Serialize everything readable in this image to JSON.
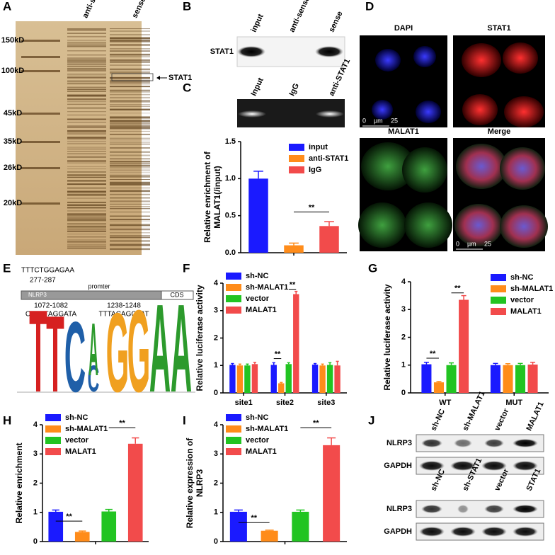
{
  "panel_labels": [
    "A",
    "B",
    "C",
    "D",
    "E",
    "F",
    "G",
    "H",
    "I",
    "J"
  ],
  "gel_a": {
    "columns": [
      "anti-sense",
      "sense"
    ],
    "markers": [
      "150kD",
      "100kD",
      "45kD",
      "35kD",
      "26kD",
      "20kD"
    ],
    "arrow_label": "STAT1"
  },
  "blot_b": {
    "columns": [
      "input",
      "anti-sense",
      "sense"
    ],
    "row": "STAT1"
  },
  "gel_c": {
    "columns": [
      "Input",
      "IgG",
      "anti-STAT1"
    ]
  },
  "images_d": {
    "titles": [
      "DAPI",
      "STAT1",
      "MALAT1",
      "Merge"
    ],
    "scale": [
      "0",
      "µm",
      "25"
    ]
  },
  "motif_e": {
    "site1": {
      "seq": "TTTCTGGAGAA",
      "range": "277-287"
    },
    "gene": "NLRP3",
    "promoter": "promter",
    "cds": "CDS",
    "site2": {
      "range": "1072-1082",
      "seq": "CTTCTAGGATA"
    },
    "site3": {
      "range": "1238-1248",
      "seq": "TTTACAGGTAT"
    },
    "logo": [
      "T",
      "T",
      "C",
      "C",
      "A",
      "G",
      "G",
      "A",
      "A"
    ]
  },
  "blots_j": [
    {
      "columns": [
        "sh-NC",
        "sh-MALAT1",
        "vector",
        "MALAT1"
      ],
      "rows": [
        "NLRP3",
        "GAPDH"
      ]
    },
    {
      "columns": [
        "sh-NC",
        "sh-STAT1",
        "vector",
        "STAT1"
      ],
      "rows": [
        "NLRP3",
        "GAPDH"
      ]
    }
  ],
  "chart_data": [
    {
      "type": "bar",
      "y_label": [
        "Relative enrichment of",
        "MALAT1(/input)"
      ],
      "legend": "upper right",
      "ylim": [
        0,
        1.5
      ],
      "yticks": [
        {
          "value": 0,
          "label": "0.0"
        },
        {
          "value": 0.5,
          "label": "0.5"
        },
        {
          "value": 1,
          "label": "1.0"
        },
        {
          "value": 1.5,
          "label": "1.5"
        }
      ],
      "series": [
        {
          "name": "input",
          "color": "#1a1aff",
          "values": [
            1.0
          ],
          "errors": [
            0.1
          ]
        },
        {
          "name": "anti-STAT1",
          "color": "#ff8c1a",
          "values": [
            0.1
          ],
          "errors": [
            0.03
          ]
        },
        {
          "name": "IgG",
          "color": "#f24b4b",
          "values": [
            0.36
          ],
          "errors": [
            0.06
          ]
        }
      ],
      "annotations": [
        "**"
      ]
    },
    {
      "type": "bar",
      "y_label": [
        "Relative luciferase activity"
      ],
      "legend": "upper left",
      "categories": [
        "site1",
        "site2",
        "site3"
      ],
      "ylim": [
        0,
        4
      ],
      "yticks": [
        0,
        1,
        2,
        3,
        4
      ],
      "series": [
        {
          "name": "sh-NC",
          "color": "#1a1aff",
          "values": [
            1.02,
            1.02,
            1.03
          ],
          "errors": [
            0.05,
            0.08,
            0.04
          ]
        },
        {
          "name": "sh-MALAT1",
          "color": "#ff8c1a",
          "values": [
            1.0,
            0.35,
            1.0
          ],
          "errors": [
            0.05,
            0.03,
            0.05
          ]
        },
        {
          "name": "vector",
          "color": "#22c422",
          "values": [
            1.0,
            1.05,
            1.02
          ],
          "errors": [
            0.05,
            0.05,
            0.08
          ]
        },
        {
          "name": "MALAT1",
          "color": "#f24b4b",
          "values": [
            1.05,
            3.6,
            1.0
          ],
          "errors": [
            0.06,
            0.1,
            0.15
          ]
        }
      ],
      "annotations": [
        "**",
        "**"
      ]
    },
    {
      "type": "bar",
      "y_label": [
        "Relative luciferase activity"
      ],
      "legend": "upper right",
      "categories": [
        "WT",
        "MUT"
      ],
      "ylim": [
        0,
        4
      ],
      "yticks": [
        0,
        1,
        2,
        3,
        4
      ],
      "series": [
        {
          "name": "sh-NC",
          "color": "#1a1aff",
          "values": [
            1.03,
            1.0
          ],
          "errors": [
            0.07,
            0.06
          ]
        },
        {
          "name": "sh-MALAT1",
          "color": "#ff8c1a",
          "values": [
            0.38,
            1.0
          ],
          "errors": [
            0.03,
            0.05
          ]
        },
        {
          "name": "vector",
          "color": "#22c422",
          "values": [
            1.0,
            1.0
          ],
          "errors": [
            0.08,
            0.06
          ]
        },
        {
          "name": "MALAT1",
          "color": "#f24b4b",
          "values": [
            3.35,
            1.02
          ],
          "errors": [
            0.15,
            0.08
          ]
        }
      ],
      "annotations": [
        "**",
        "**"
      ]
    },
    {
      "type": "bar",
      "y_label": [
        "Relative enrichment"
      ],
      "legend": "upper left",
      "ylim": [
        0,
        4
      ],
      "yticks": [
        0,
        1,
        2,
        3,
        4
      ],
      "series": [
        {
          "name": "sh-NC",
          "color": "#1a1aff",
          "values": [
            1.02
          ],
          "errors": [
            0.06
          ]
        },
        {
          "name": "sh-MALAT1",
          "color": "#ff8c1a",
          "values": [
            0.33
          ],
          "errors": [
            0.03
          ]
        },
        {
          "name": "vector",
          "color": "#22c422",
          "values": [
            1.03
          ],
          "errors": [
            0.07
          ]
        },
        {
          "name": "MALAT1",
          "color": "#f24b4b",
          "values": [
            3.35
          ],
          "errors": [
            0.2
          ]
        }
      ],
      "annotations": [
        "**",
        "**"
      ]
    },
    {
      "type": "bar",
      "y_label": [
        "Relative expression of",
        "NLRP3"
      ],
      "legend": "upper left",
      "ylim": [
        0,
        4
      ],
      "yticks": [
        0,
        1,
        2,
        3,
        4
      ],
      "series": [
        {
          "name": "sh-NC",
          "color": "#1a1aff",
          "values": [
            1.02
          ],
          "errors": [
            0.06
          ]
        },
        {
          "name": "sh-MALAT1",
          "color": "#ff8c1a",
          "values": [
            0.37
          ],
          "errors": [
            0.02
          ]
        },
        {
          "name": "vector",
          "color": "#22c422",
          "values": [
            1.02
          ],
          "errors": [
            0.06
          ]
        },
        {
          "name": "MALAT1",
          "color": "#f24b4b",
          "values": [
            3.3
          ],
          "errors": [
            0.25
          ]
        }
      ],
      "annotations": [
        "**",
        "**"
      ]
    }
  ]
}
